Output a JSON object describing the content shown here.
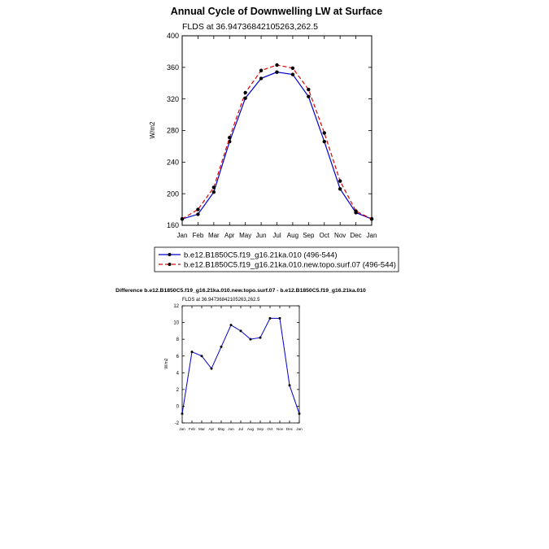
{
  "chart_data": [
    {
      "type": "line",
      "title": "Annual Cycle of Downwelling LW at Surface",
      "subtitle": "FLDS at 36.94736842105263,262.5",
      "xlabel": "",
      "ylabel": "W/m2",
      "categories": [
        "Jan",
        "Feb",
        "Mar",
        "Apr",
        "May",
        "Jun",
        "Jul",
        "Aug",
        "Sep",
        "Oct",
        "Nov",
        "Dec",
        "Jan"
      ],
      "ylim": [
        160,
        400
      ],
      "yticks": [
        160,
        200,
        240,
        280,
        320,
        360,
        400
      ],
      "series": [
        {
          "name": "b.e12.B1850C5.f19_g16.21ka.010 (496-544)",
          "color": "#0000cc",
          "dash": "solid",
          "values": [
            168,
            174,
            202,
            266,
            321,
            346,
            354,
            351,
            323,
            266,
            206,
            176,
            168
          ]
        },
        {
          "name": "b.e12.B1850C5.f19_g16.21ka.010.new.topo.surf.07 (496-544)",
          "color": "#e00000",
          "dash": "dashed",
          "values": [
            168,
            180,
            208,
            271,
            328,
            356,
            363,
            359,
            332,
            277,
            216,
            178,
            168
          ]
        }
      ]
    },
    {
      "type": "line",
      "title": "Difference b.e12.B1850C5.f19_g16.21ka.010.new.topo.surf.07 - b.e12.B1850C5.f19_g16.21ka.010",
      "subtitle": "FLDS at 36.94736842105263,262.5",
      "xlabel": "",
      "ylabel": "W/m2",
      "categories": [
        "Jan",
        "Feb",
        "Mar",
        "Apr",
        "May",
        "Jun",
        "Jul",
        "Aug",
        "Sep",
        "Oct",
        "Nov",
        "Dec",
        "Jan"
      ],
      "ylim": [
        -2,
        12
      ],
      "yticks": [
        -2,
        0,
        2,
        4,
        6,
        8,
        10,
        12
      ],
      "series": [
        {
          "name": "difference",
          "color": "#0000cc",
          "dash": "solid",
          "values": [
            -0.9,
            6.5,
            6.0,
            4.5,
            7.1,
            9.7,
            9.0,
            8.0,
            8.2,
            10.5,
            10.5,
            2.5,
            -0.9
          ]
        }
      ]
    }
  ]
}
